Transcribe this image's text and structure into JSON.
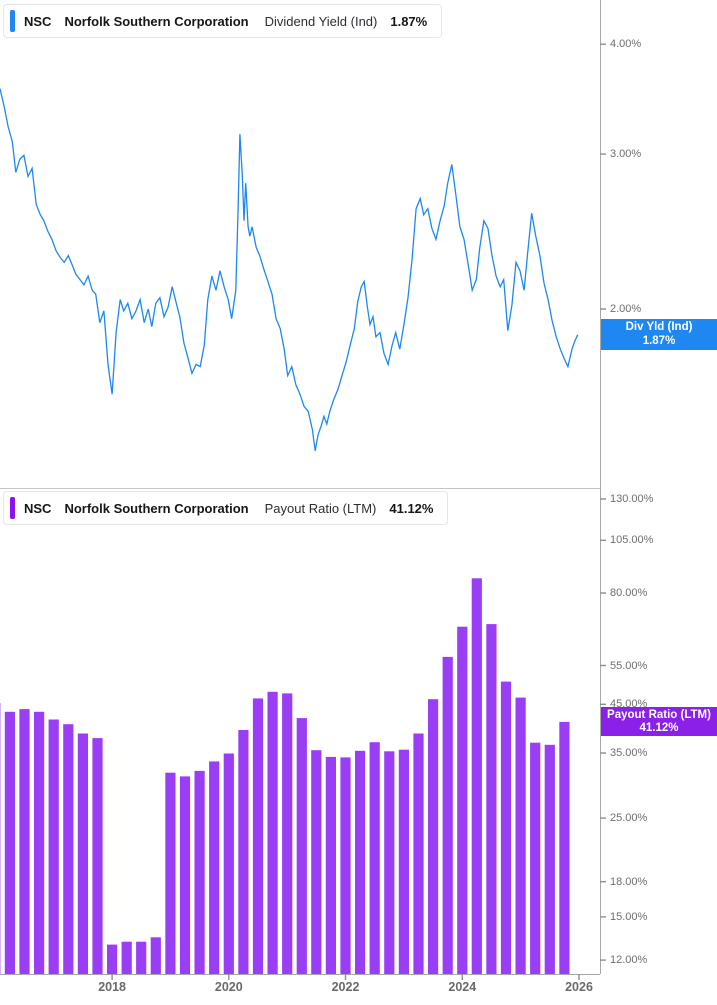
{
  "panels": [
    {
      "header": {
        "ticker": "NSC",
        "company": "Norfolk Southern Corporation",
        "metric": "Dividend Yield (Ind)",
        "value": "1.87%"
      },
      "accent": "#1e87f2",
      "badge": {
        "line1": "Div Yld (Ind)",
        "line2": "1.87%",
        "color": "#1e87f2",
        "value": 1.87
      },
      "y_ticks": [
        {
          "v": 4,
          "label": "4.00%"
        },
        {
          "v": 3,
          "label": "3.00%"
        },
        {
          "v": 2,
          "label": "2.00%"
        }
      ]
    },
    {
      "header": {
        "ticker": "NSC",
        "company": "Norfolk Southern Corporation",
        "metric": "Payout Ratio (LTM)",
        "value": "41.12%"
      },
      "accent": "#8d12ea",
      "badge": {
        "line1": "Payout Ratio (LTM)",
        "line2": "41.12%",
        "color": "#8b20e8",
        "value": 41.12
      },
      "y_ticks": [
        {
          "v": 130,
          "label": "130.00%"
        },
        {
          "v": 105,
          "label": "105.00%"
        },
        {
          "v": 80,
          "label": "80.00%"
        },
        {
          "v": 55,
          "label": "55.00%"
        },
        {
          "v": 45,
          "label": "45.00%"
        },
        {
          "v": 35,
          "label": "35.00%"
        },
        {
          "v": 25,
          "label": "25.00%"
        },
        {
          "v": 18,
          "label": "18.00%"
        },
        {
          "v": 15,
          "label": "15.00%"
        },
        {
          "v": 12,
          "label": "12.00%"
        }
      ]
    }
  ],
  "x_axis": {
    "year_ticks": [
      2018,
      2020,
      2022,
      2024,
      2026
    ]
  },
  "chart_data": [
    {
      "type": "line",
      "title": "NSC Dividend Yield (Ind)",
      "ylabel": "Dividend Yield %",
      "unit": "percent",
      "yscale": "log",
      "grid": false,
      "legend_position": "right-badge",
      "x_domain": [
        2016.08,
        2026.36
      ],
      "ylim": [
        1.275,
        4.49
      ],
      "color": "#1e87f2",
      "last_value": 1.87,
      "points": [
        [
          2016.08,
          3.56
        ],
        [
          2016.15,
          3.4
        ],
        [
          2016.22,
          3.22
        ],
        [
          2016.29,
          3.1
        ],
        [
          2016.35,
          2.86
        ],
        [
          2016.42,
          2.96
        ],
        [
          2016.49,
          2.99
        ],
        [
          2016.56,
          2.83
        ],
        [
          2016.63,
          2.89
        ],
        [
          2016.7,
          2.63
        ],
        [
          2016.77,
          2.56
        ],
        [
          2016.83,
          2.52
        ],
        [
          2016.9,
          2.45
        ],
        [
          2016.97,
          2.4
        ],
        [
          2017.04,
          2.33
        ],
        [
          2017.11,
          2.29
        ],
        [
          2017.18,
          2.26
        ],
        [
          2017.25,
          2.3
        ],
        [
          2017.31,
          2.25
        ],
        [
          2017.38,
          2.19
        ],
        [
          2017.45,
          2.16
        ],
        [
          2017.52,
          2.13
        ],
        [
          2017.59,
          2.18
        ],
        [
          2017.66,
          2.1
        ],
        [
          2017.72,
          2.08
        ],
        [
          2017.79,
          1.93
        ],
        [
          2017.86,
          1.99
        ],
        [
          2017.93,
          1.73
        ],
        [
          2018.0,
          1.6
        ],
        [
          2018.07,
          1.88
        ],
        [
          2018.14,
          2.05
        ],
        [
          2018.2,
          1.99
        ],
        [
          2018.27,
          2.03
        ],
        [
          2018.34,
          1.95
        ],
        [
          2018.41,
          1.99
        ],
        [
          2018.48,
          2.05
        ],
        [
          2018.55,
          1.93
        ],
        [
          2018.62,
          2.0
        ],
        [
          2018.68,
          1.91
        ],
        [
          2018.75,
          2.03
        ],
        [
          2018.82,
          2.06
        ],
        [
          2018.89,
          1.96
        ],
        [
          2018.96,
          2.01
        ],
        [
          2019.03,
          2.12
        ],
        [
          2019.1,
          2.03
        ],
        [
          2019.16,
          1.96
        ],
        [
          2019.23,
          1.83
        ],
        [
          2019.3,
          1.76
        ],
        [
          2019.37,
          1.69
        ],
        [
          2019.44,
          1.73
        ],
        [
          2019.51,
          1.72
        ],
        [
          2019.58,
          1.82
        ],
        [
          2019.64,
          2.05
        ],
        [
          2019.71,
          2.18
        ],
        [
          2019.78,
          2.1
        ],
        [
          2019.85,
          2.21
        ],
        [
          2019.92,
          2.12
        ],
        [
          2019.99,
          2.05
        ],
        [
          2020.05,
          1.95
        ],
        [
          2020.12,
          2.1
        ],
        [
          2020.16,
          2.6
        ],
        [
          2020.19,
          3.16
        ],
        [
          2020.23,
          2.85
        ],
        [
          2020.26,
          2.52
        ],
        [
          2020.29,
          2.78
        ],
        [
          2020.33,
          2.48
        ],
        [
          2020.36,
          2.42
        ],
        [
          2020.4,
          2.48
        ],
        [
          2020.47,
          2.35
        ],
        [
          2020.53,
          2.3
        ],
        [
          2020.6,
          2.22
        ],
        [
          2020.67,
          2.15
        ],
        [
          2020.74,
          2.08
        ],
        [
          2020.81,
          1.95
        ],
        [
          2020.88,
          1.9
        ],
        [
          2020.95,
          1.8
        ],
        [
          2021.01,
          1.68
        ],
        [
          2021.08,
          1.72
        ],
        [
          2021.15,
          1.64
        ],
        [
          2021.22,
          1.6
        ],
        [
          2021.29,
          1.55
        ],
        [
          2021.36,
          1.53
        ],
        [
          2021.43,
          1.46
        ],
        [
          2021.48,
          1.38
        ],
        [
          2021.53,
          1.44
        ],
        [
          2021.58,
          1.47
        ],
        [
          2021.63,
          1.51
        ],
        [
          2021.68,
          1.48
        ],
        [
          2021.73,
          1.53
        ],
        [
          2021.8,
          1.58
        ],
        [
          2021.87,
          1.62
        ],
        [
          2021.94,
          1.68
        ],
        [
          2022.01,
          1.74
        ],
        [
          2022.08,
          1.82
        ],
        [
          2022.15,
          1.9
        ],
        [
          2022.21,
          2.04
        ],
        [
          2022.27,
          2.12
        ],
        [
          2022.32,
          2.15
        ],
        [
          2022.37,
          2.02
        ],
        [
          2022.42,
          1.92
        ],
        [
          2022.47,
          1.96
        ],
        [
          2022.52,
          1.86
        ],
        [
          2022.59,
          1.88
        ],
        [
          2022.66,
          1.78
        ],
        [
          2022.73,
          1.73
        ],
        [
          2022.8,
          1.82
        ],
        [
          2022.86,
          1.88
        ],
        [
          2022.93,
          1.8
        ],
        [
          2023.0,
          1.92
        ],
        [
          2023.07,
          2.06
        ],
        [
          2023.14,
          2.28
        ],
        [
          2023.21,
          2.6
        ],
        [
          2023.28,
          2.67
        ],
        [
          2023.34,
          2.56
        ],
        [
          2023.41,
          2.6
        ],
        [
          2023.48,
          2.47
        ],
        [
          2023.55,
          2.4
        ],
        [
          2023.62,
          2.52
        ],
        [
          2023.69,
          2.62
        ],
        [
          2023.75,
          2.78
        ],
        [
          2023.82,
          2.92
        ],
        [
          2023.89,
          2.7
        ],
        [
          2023.96,
          2.48
        ],
        [
          2024.03,
          2.4
        ],
        [
          2024.1,
          2.25
        ],
        [
          2024.17,
          2.1
        ],
        [
          2024.24,
          2.16
        ],
        [
          2024.3,
          2.35
        ],
        [
          2024.37,
          2.52
        ],
        [
          2024.44,
          2.47
        ],
        [
          2024.51,
          2.3
        ],
        [
          2024.58,
          2.18
        ],
        [
          2024.65,
          2.12
        ],
        [
          2024.71,
          2.16
        ],
        [
          2024.78,
          1.89
        ],
        [
          2024.85,
          2.02
        ],
        [
          2024.92,
          2.26
        ],
        [
          2024.99,
          2.21
        ],
        [
          2025.06,
          2.1
        ],
        [
          2025.13,
          2.35
        ],
        [
          2025.19,
          2.57
        ],
        [
          2025.26,
          2.42
        ],
        [
          2025.33,
          2.3
        ],
        [
          2025.4,
          2.14
        ],
        [
          2025.47,
          2.05
        ],
        [
          2025.54,
          1.94
        ],
        [
          2025.61,
          1.86
        ],
        [
          2025.68,
          1.8
        ],
        [
          2025.74,
          1.76
        ],
        [
          2025.81,
          1.72
        ],
        [
          2025.88,
          1.8
        ],
        [
          2025.93,
          1.84
        ],
        [
          2025.98,
          1.87
        ]
      ]
    },
    {
      "type": "bar",
      "title": "NSC Payout Ratio (LTM)",
      "ylabel": "Payout Ratio %",
      "unit": "percent",
      "yscale": "log",
      "grid": false,
      "legend_position": "right-badge",
      "x_domain": [
        2016.08,
        2026.36
      ],
      "ylim": [
        11.17,
        137.6
      ],
      "color": "#9a3ef5",
      "last_value": 41.12,
      "categories": [
        "2015 Q4",
        "2016 Q1",
        "2016 Q2",
        "2016 Q3",
        "2016 Q4",
        "2017 Q1",
        "2017 Q2",
        "2017 Q3",
        "2017 Q4",
        "2018 Q1",
        "2018 Q2",
        "2018 Q3",
        "2018 Q4",
        "2019 Q1",
        "2019 Q2",
        "2019 Q3",
        "2019 Q4",
        "2020 Q1",
        "2020 Q2",
        "2020 Q3",
        "2020 Q4",
        "2021 Q1",
        "2021 Q2",
        "2021 Q3",
        "2021 Q4",
        "2022 Q1",
        "2022 Q2",
        "2022 Q3",
        "2022 Q4",
        "2023 Q1",
        "2023 Q2",
        "2023 Q3",
        "2023 Q4",
        "2024 Q1",
        "2024 Q2",
        "2024 Q3",
        "2024 Q4",
        "2025 Q1",
        "2025 Q2",
        "2025 Q3"
      ],
      "points": [
        [
          2016.0,
          45.3
        ],
        [
          2016.25,
          43.3
        ],
        [
          2016.5,
          43.9
        ],
        [
          2016.75,
          43.3
        ],
        [
          2017.0,
          41.6
        ],
        [
          2017.25,
          40.6
        ],
        [
          2017.5,
          38.7
        ],
        [
          2017.75,
          37.8
        ],
        [
          2018.0,
          13.0
        ],
        [
          2018.25,
          13.2
        ],
        [
          2018.5,
          13.2
        ],
        [
          2018.75,
          13.5
        ],
        [
          2019.0,
          31.6
        ],
        [
          2019.25,
          31.0
        ],
        [
          2019.5,
          31.9
        ],
        [
          2019.75,
          33.5
        ],
        [
          2020.0,
          34.9
        ],
        [
          2020.25,
          39.4
        ],
        [
          2020.5,
          46.4
        ],
        [
          2020.75,
          48.0
        ],
        [
          2021.0,
          47.6
        ],
        [
          2021.25,
          41.9
        ],
        [
          2021.5,
          35.5
        ],
        [
          2021.75,
          34.3
        ],
        [
          2022.0,
          34.2
        ],
        [
          2022.25,
          35.4
        ],
        [
          2022.5,
          37.0
        ],
        [
          2022.75,
          35.3
        ],
        [
          2023.0,
          35.6
        ],
        [
          2023.25,
          38.7
        ],
        [
          2023.5,
          46.2
        ],
        [
          2023.75,
          57.5
        ],
        [
          2024.0,
          67.2
        ],
        [
          2024.25,
          86.3
        ],
        [
          2024.5,
          68.1
        ],
        [
          2024.75,
          50.6
        ],
        [
          2025.0,
          46.6
        ],
        [
          2025.25,
          36.9
        ],
        [
          2025.5,
          36.5
        ],
        [
          2025.75,
          41.1
        ]
      ]
    }
  ]
}
